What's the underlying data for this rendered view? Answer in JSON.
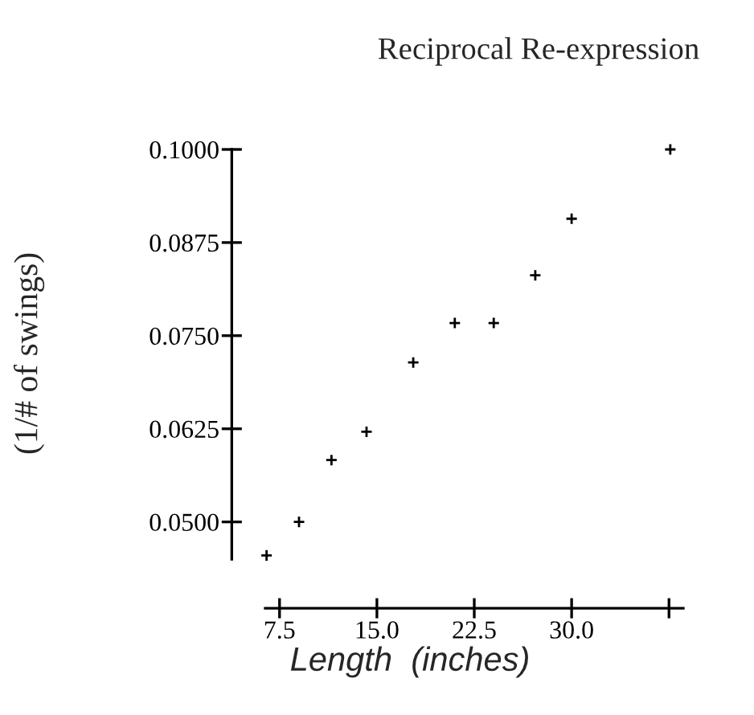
{
  "chart_data": {
    "type": "scatter",
    "title": "Reciprocal Re-expression",
    "xlabel": "Length  (inches)",
    "ylabel": "(1/# of swings)",
    "x": [
      6.5,
      9,
      11.5,
      14.2,
      17.8,
      21,
      24,
      27.2,
      30,
      37.6
    ],
    "series": [
      {
        "color": "#000000",
        "values": [
          0.0455,
          0.05,
          0.0583,
          0.0621,
          0.0714,
          0.0767,
          0.0767,
          0.0831,
          0.0907,
          0.1
        ]
      }
    ],
    "xlim": [
      6.4,
      38.6
    ],
    "ylim": [
      0.045,
      0.1
    ],
    "xticks": [
      7.5,
      {
        "value": 15,
        "label": "15.0"
      },
      22.5,
      {
        "value": 30,
        "label": "30.0"
      },
      {
        "value": 37.5,
        "label": null
      }
    ],
    "yticks": [
      {
        "value": 0.05,
        "label": "0.0500"
      },
      {
        "value": 0.0625,
        "label": "0.0625"
      },
      {
        "value": 0.075,
        "label": "0.0750"
      },
      {
        "value": 0.0875,
        "label": "0.0875"
      },
      {
        "value": 0.1,
        "label": "0.1000"
      }
    ],
    "marker": "cross",
    "grid": false,
    "legend": false
  }
}
